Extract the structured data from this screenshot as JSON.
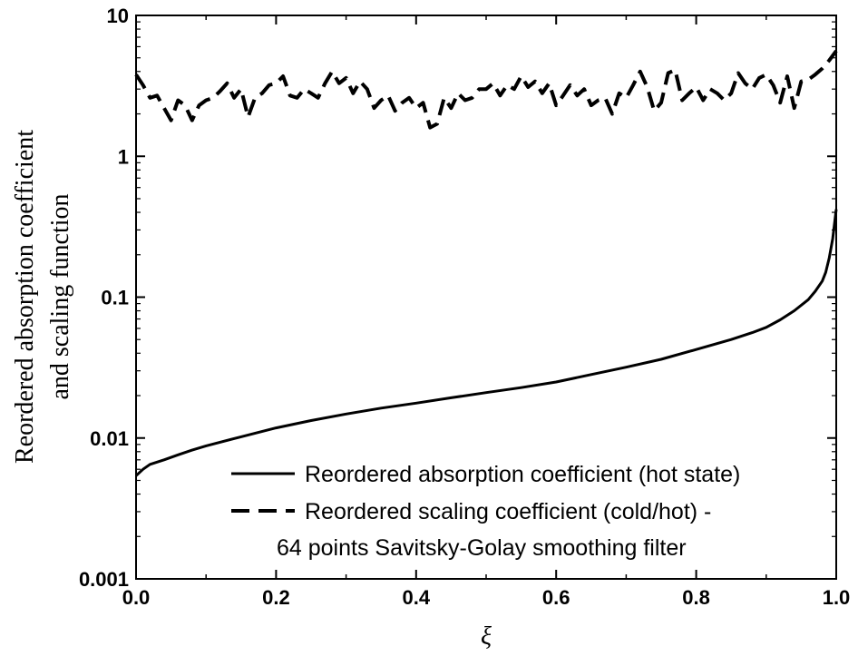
{
  "chart_data": {
    "type": "line",
    "title": "",
    "xlabel": "ξ",
    "ylabel_lines": [
      "Reordered absorption coefficient",
      "and scaling function"
    ],
    "xlim": [
      0.0,
      1.0
    ],
    "ylim": [
      0.001,
      10
    ],
    "yscale": "log",
    "x_ticks": [
      0.0,
      0.2,
      0.4,
      0.6,
      0.8,
      1.0
    ],
    "x_tick_labels": [
      "0.0",
      "0.2",
      "0.4",
      "0.6",
      "0.8",
      "1.0"
    ],
    "y_ticks": [
      0.001,
      0.01,
      0.1,
      1,
      10
    ],
    "y_tick_labels": [
      "0.001",
      "0.01",
      "0.1",
      "1",
      "10"
    ],
    "grid": false,
    "legend_position": "bottom-right",
    "series": [
      {
        "name": "Reordered absorption coefficient (hot state)",
        "style": "solid",
        "x": [
          0.0,
          0.01,
          0.02,
          0.04,
          0.06,
          0.08,
          0.1,
          0.15,
          0.2,
          0.25,
          0.3,
          0.35,
          0.4,
          0.45,
          0.5,
          0.55,
          0.6,
          0.65,
          0.7,
          0.75,
          0.8,
          0.85,
          0.88,
          0.9,
          0.92,
          0.94,
          0.96,
          0.97,
          0.98,
          0.985,
          0.99,
          0.995,
          1.0
        ],
        "y": [
          0.0054,
          0.006,
          0.0065,
          0.007,
          0.0076,
          0.0082,
          0.0088,
          0.0102,
          0.0118,
          0.0133,
          0.0148,
          0.0163,
          0.0177,
          0.0193,
          0.021,
          0.0228,
          0.025,
          0.0282,
          0.0318,
          0.0362,
          0.0425,
          0.05,
          0.056,
          0.061,
          0.069,
          0.08,
          0.096,
          0.11,
          0.13,
          0.15,
          0.19,
          0.26,
          0.42
        ]
      },
      {
        "name": "Reordered scaling coefficient (cold/hot) -",
        "name_continuation": "64 points Savitsky-Golay smoothing filter",
        "style": "dashed",
        "x": [
          0.0,
          0.01,
          0.02,
          0.03,
          0.04,
          0.05,
          0.06,
          0.07,
          0.08,
          0.09,
          0.1,
          0.11,
          0.12,
          0.13,
          0.14,
          0.15,
          0.16,
          0.17,
          0.18,
          0.19,
          0.2,
          0.21,
          0.22,
          0.23,
          0.24,
          0.25,
          0.26,
          0.27,
          0.28,
          0.29,
          0.3,
          0.31,
          0.32,
          0.33,
          0.34,
          0.35,
          0.36,
          0.37,
          0.38,
          0.39,
          0.4,
          0.41,
          0.42,
          0.43,
          0.44,
          0.45,
          0.46,
          0.47,
          0.48,
          0.49,
          0.5,
          0.51,
          0.52,
          0.53,
          0.54,
          0.55,
          0.56,
          0.57,
          0.58,
          0.59,
          0.6,
          0.61,
          0.62,
          0.63,
          0.64,
          0.65,
          0.66,
          0.67,
          0.68,
          0.69,
          0.7,
          0.71,
          0.72,
          0.73,
          0.74,
          0.75,
          0.76,
          0.77,
          0.78,
          0.79,
          0.8,
          0.81,
          0.82,
          0.83,
          0.84,
          0.85,
          0.86,
          0.87,
          0.88,
          0.89,
          0.9,
          0.91,
          0.92,
          0.93,
          0.94,
          0.95,
          0.96,
          0.97,
          0.98,
          0.99,
          1.0
        ],
        "y": [
          3.8,
          3.2,
          2.6,
          2.7,
          2.2,
          1.8,
          2.5,
          2.3,
          1.8,
          2.3,
          2.5,
          2.6,
          2.9,
          3.3,
          2.6,
          3.0,
          1.9,
          2.6,
          2.8,
          3.2,
          3.3,
          3.7,
          2.7,
          2.6,
          3.0,
          2.8,
          2.6,
          3.3,
          4.0,
          3.3,
          3.6,
          2.8,
          3.4,
          3.0,
          2.2,
          2.5,
          2.7,
          2.1,
          2.4,
          2.6,
          2.2,
          2.4,
          1.6,
          1.7,
          2.6,
          2.2,
          2.8,
          2.5,
          2.6,
          3.0,
          3.0,
          3.3,
          2.7,
          3.2,
          3.0,
          3.7,
          3.1,
          3.4,
          2.8,
          3.3,
          2.3,
          2.7,
          3.2,
          2.7,
          3.0,
          2.3,
          2.5,
          2.6,
          2.0,
          2.8,
          2.6,
          3.2,
          4.0,
          3.1,
          2.1,
          2.4,
          3.9,
          4.1,
          2.5,
          2.8,
          3.1,
          2.5,
          3.0,
          2.8,
          2.5,
          2.8,
          3.9,
          3.3,
          3.0,
          3.6,
          3.8,
          3.2,
          2.4,
          3.7,
          2.2,
          3.4,
          3.5,
          3.8,
          4.2,
          4.8,
          5.6
        ]
      }
    ]
  }
}
